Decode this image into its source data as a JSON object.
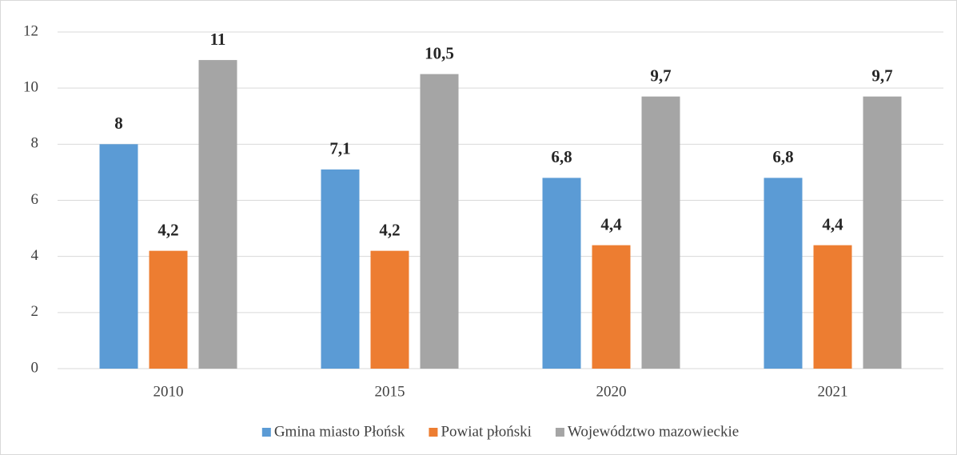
{
  "chart_data": {
    "type": "bar",
    "categories": [
      "2010",
      "2015",
      "2020",
      "2021"
    ],
    "series": [
      {
        "name": "Gmina miasto Płońsk",
        "color": "#5b9bd5",
        "values": [
          8,
          7.1,
          6.8,
          6.8
        ],
        "value_labels": [
          "8",
          "7,1",
          "6,8",
          "6,8"
        ]
      },
      {
        "name": "Powiat płoński",
        "color": "#ed7d31",
        "values": [
          4.2,
          4.2,
          4.4,
          4.4
        ],
        "value_labels": [
          "4,2",
          "4,2",
          "4,4",
          "4,4"
        ]
      },
      {
        "name": "Województwo mazowieckie",
        "color": "#a5a5a5",
        "values": [
          11,
          10.5,
          9.7,
          9.7
        ],
        "value_labels": [
          "11",
          "10,5",
          "9,7",
          "9,7"
        ]
      }
    ],
    "ylim": [
      0,
      12
    ],
    "yticks": [
      0,
      2,
      4,
      6,
      8,
      10,
      12
    ],
    "grid": true,
    "legend": "bottom"
  }
}
